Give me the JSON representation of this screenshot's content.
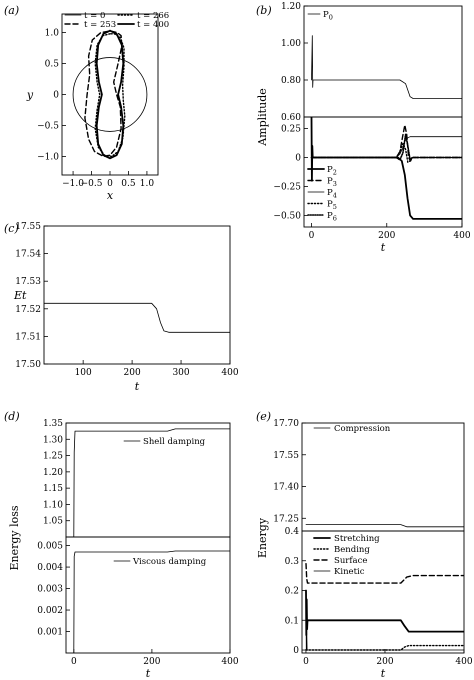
{
  "chart_data": [
    {
      "id": "a",
      "panel_label": "(a)",
      "type": "line",
      "xlabel": "x",
      "ylabel": "y",
      "xlim": [
        -1.3,
        1.3
      ],
      "ylim": [
        -1.3,
        1.3
      ],
      "xticks": [
        "−1.0",
        "−0.5",
        "0",
        "0.5",
        "1.0"
      ],
      "yticks": [
        "−1.0",
        "−0.5",
        "0",
        "0.5",
        "1.0"
      ],
      "legend_placement": "top",
      "series": [
        {
          "name": "t = 0",
          "style": "thin-solid",
          "x": [
            1.0,
            0.866,
            0.5,
            0.0,
            -0.5,
            -0.866,
            -1.0,
            -0.866,
            -0.5,
            0.0,
            0.5,
            0.866,
            1.0
          ],
          "y": [
            0.0,
            0.5,
            0.866,
            1.0,
            0.866,
            0.5,
            0.0,
            -0.5,
            -0.866,
            -1.0,
            -0.866,
            -0.5,
            0.0
          ]
        },
        {
          "name": "t = 253",
          "style": "dashed",
          "x": [
            -0.05,
            -0.25,
            -0.48,
            -0.58,
            -0.55,
            -0.62,
            -0.68,
            -0.58,
            -0.42,
            -0.18,
            0.0,
            0.18,
            0.3,
            0.28,
            0.18,
            0.1,
            0.22,
            0.32,
            0.3,
            0.2,
            0.05,
            -0.05
          ],
          "y": [
            1.02,
            1.0,
            0.88,
            0.62,
            0.32,
            0.0,
            -0.38,
            -0.72,
            -0.92,
            -1.0,
            -0.98,
            -0.85,
            -0.55,
            -0.2,
            0.0,
            0.2,
            0.5,
            0.78,
            0.95,
            1.0,
            1.02,
            1.02
          ]
        },
        {
          "name": "t = 266",
          "style": "dotted",
          "x": [
            0.0,
            -0.2,
            -0.35,
            -0.4,
            -0.35,
            -0.28,
            -0.35,
            -0.4,
            -0.32,
            -0.15,
            0.05,
            0.22,
            0.35,
            0.4,
            0.36,
            0.34,
            0.38,
            0.38,
            0.28,
            0.12,
            0.0
          ],
          "y": [
            0.98,
            0.95,
            0.8,
            0.5,
            0.2,
            0.0,
            -0.25,
            -0.55,
            -0.85,
            -0.98,
            -1.0,
            -0.92,
            -0.7,
            -0.35,
            -0.1,
            0.15,
            0.45,
            0.75,
            0.92,
            0.98,
            0.98
          ]
        },
        {
          "name": "t = 400",
          "style": "thick-solid",
          "x": [
            0.0,
            -0.18,
            -0.32,
            -0.36,
            -0.3,
            -0.22,
            -0.3,
            -0.36,
            -0.32,
            -0.18,
            0.0,
            0.18,
            0.32,
            0.36,
            0.3,
            0.22,
            0.3,
            0.36,
            0.32,
            0.18,
            0.0
          ],
          "y": [
            1.03,
            0.98,
            0.8,
            0.5,
            0.2,
            0.0,
            -0.2,
            -0.5,
            -0.8,
            -0.98,
            -1.03,
            -0.98,
            -0.8,
            -0.5,
            -0.2,
            0.0,
            0.2,
            0.5,
            0.8,
            0.98,
            1.03
          ]
        }
      ]
    },
    {
      "id": "b",
      "panel_label": "(b)",
      "type": "line",
      "xlabel": "t",
      "ylabel": "Amplitude",
      "xlim": [
        -20,
        400
      ],
      "xticks": [
        "0",
        "200",
        "400"
      ],
      "upper": {
        "ylim": [
          0.6,
          1.2
        ],
        "yticks": [
          "0.60",
          "0.80",
          "1.00",
          "1.20"
        ],
        "legend_placement": "top-left",
        "series": [
          {
            "name": "P0",
            "style": "thin-solid",
            "x": [
              0,
              2,
              3,
              4,
              6,
              235,
              250,
              262,
              270,
              400
            ],
            "y": [
              0.8,
              1.04,
              0.76,
              0.8,
              0.8,
              0.8,
              0.78,
              0.71,
              0.7,
              0.7
            ]
          }
        ]
      },
      "lower": {
        "ylim": [
          -0.6,
          0.35
        ],
        "yticks": [
          "−0.50",
          "−0.25",
          "0",
          "0.25"
        ],
        "legend_placement": "bottom-left",
        "series": [
          {
            "name": "P2",
            "style": "thick-solid",
            "x": [
              0,
              1,
              2,
              3,
              230,
              240,
              248,
              255,
              262,
              270,
              400
            ],
            "y": [
              0.35,
              -0.2,
              0.1,
              0.0,
              0.0,
              -0.03,
              -0.15,
              -0.35,
              -0.5,
              -0.53,
              -0.53
            ]
          },
          {
            "name": "P3",
            "style": "dashed",
            "x": [
              0,
              225,
              235,
              242,
              248,
              253,
              258,
              263,
              268,
              400
            ],
            "y": [
              0.0,
              0.0,
              0.05,
              0.18,
              0.28,
              0.2,
              0.0,
              -0.03,
              0.0,
              0.0
            ]
          },
          {
            "name": "P4",
            "style": "thin-solid",
            "x": [
              0,
              225,
              235,
              242,
              248,
              256,
              262,
              270,
              400
            ],
            "y": [
              0.0,
              0.0,
              0.03,
              0.08,
              0.14,
              0.17,
              0.18,
              0.18,
              0.18
            ]
          },
          {
            "name": "P5",
            "style": "dotted",
            "x": [
              0,
              225,
              235,
              243,
              250,
              256,
              262,
              268,
              400
            ],
            "y": [
              0.0,
              0.0,
              0.05,
              0.12,
              0.07,
              -0.04,
              -0.03,
              0.0,
              0.0
            ]
          },
          {
            "name": "P6",
            "style": "dense-dotted",
            "x": [
              0,
              225,
              235,
              243,
              250,
              256,
              262,
              268,
              400
            ],
            "y": [
              0.0,
              0.0,
              -0.02,
              0.04,
              0.2,
              0.1,
              -0.02,
              0.0,
              0.0
            ]
          }
        ]
      }
    },
    {
      "id": "c",
      "panel_label": "(c)",
      "type": "line",
      "xlabel": "t",
      "ylabel": "Et",
      "xlim": [
        20,
        400
      ],
      "ylim": [
        17.5,
        17.55
      ],
      "xticks": [
        "100",
        "200",
        "300",
        "400"
      ],
      "yticks": [
        "17.50",
        "17.51",
        "17.52",
        "17.53",
        "17.54",
        "17.55"
      ],
      "series": [
        {
          "name": "",
          "style": "thin-solid",
          "x": [
            20,
            240,
            250,
            258,
            265,
            275,
            400
          ],
          "y": [
            17.522,
            17.522,
            17.52,
            17.515,
            17.512,
            17.5115,
            17.5115
          ]
        }
      ]
    },
    {
      "id": "d",
      "panel_label": "(d)",
      "type": "line",
      "xlabel": "t",
      "ylabel": "Energy loss",
      "xlim": [
        -20,
        400
      ],
      "xticks": [
        "0",
        "200",
        "400"
      ],
      "upper": {
        "ylim": [
          1.0,
          1.35
        ],
        "yticks": [
          "1.05",
          "1.10",
          "1.15",
          "1.20",
          "1.25",
          "1.30",
          "1.35"
        ],
        "series": [
          {
            "name": "Shell damping",
            "style": "thin-solid",
            "x": [
              0,
              1,
              3,
              240,
              260,
              400
            ],
            "y": [
              1.0,
              1.26,
              1.325,
              1.325,
              1.332,
              1.332
            ]
          }
        ]
      },
      "lower": {
        "ylim": [
          0.0,
          0.0054
        ],
        "yticks": [
          "0.001",
          "0.002",
          "0.003",
          "0.004",
          "0.005"
        ],
        "series": [
          {
            "name": "Viscous damping",
            "style": "thin-solid",
            "x": [
              0,
              1,
              3,
              240,
              260,
              400
            ],
            "y": [
              0.0,
              0.0045,
              0.0047,
              0.0047,
              0.00475,
              0.00475
            ]
          }
        ]
      }
    },
    {
      "id": "e",
      "panel_label": "(e)",
      "type": "line",
      "xlabel": "t",
      "ylabel": "Energy",
      "xlim": [
        -10,
        400
      ],
      "xticks": [
        "0",
        "200",
        "400"
      ],
      "upper": {
        "ylim": [
          17.19,
          17.7
        ],
        "yticks": [
          "17.25",
          "17.40",
          "17.55",
          "17.70"
        ],
        "series": [
          {
            "name": "Compression",
            "style": "thin-solid",
            "x": [
              0,
              240,
              255,
              400
            ],
            "y": [
              17.22,
              17.22,
              17.21,
              17.21
            ]
          }
        ]
      },
      "lower": {
        "ylim": [
          -0.01,
          0.4
        ],
        "yticks": [
          "0",
          "0.1",
          "0.2",
          "0.3",
          "0.4"
        ],
        "series": [
          {
            "name": "Stretching",
            "style": "thick-solid",
            "x": [
              0,
              1,
              2,
              3,
              4,
              240,
              250,
              260,
              400
            ],
            "y": [
              0.2,
              0.05,
              0.17,
              0.07,
              0.1,
              0.1,
              0.08,
              0.062,
              0.062
            ]
          },
          {
            "name": "Bending",
            "style": "dotted",
            "x": [
              0,
              240,
              250,
              260,
              400
            ],
            "y": [
              0.0,
              0.0,
              0.01,
              0.015,
              0.015
            ]
          },
          {
            "name": "Surface",
            "style": "dashed",
            "x": [
              0,
              2,
              4,
              240,
              255,
              270,
              400
            ],
            "y": [
              0.29,
              0.24,
              0.225,
              0.225,
              0.245,
              0.25,
              0.25
            ]
          },
          {
            "name": "Kinetic",
            "style": "thin-solid",
            "x": [
              0,
              1,
              2,
              3,
              400
            ],
            "y": [
              0.15,
              0.0,
              0.07,
              0.0,
              0.0
            ]
          }
        ]
      }
    }
  ]
}
